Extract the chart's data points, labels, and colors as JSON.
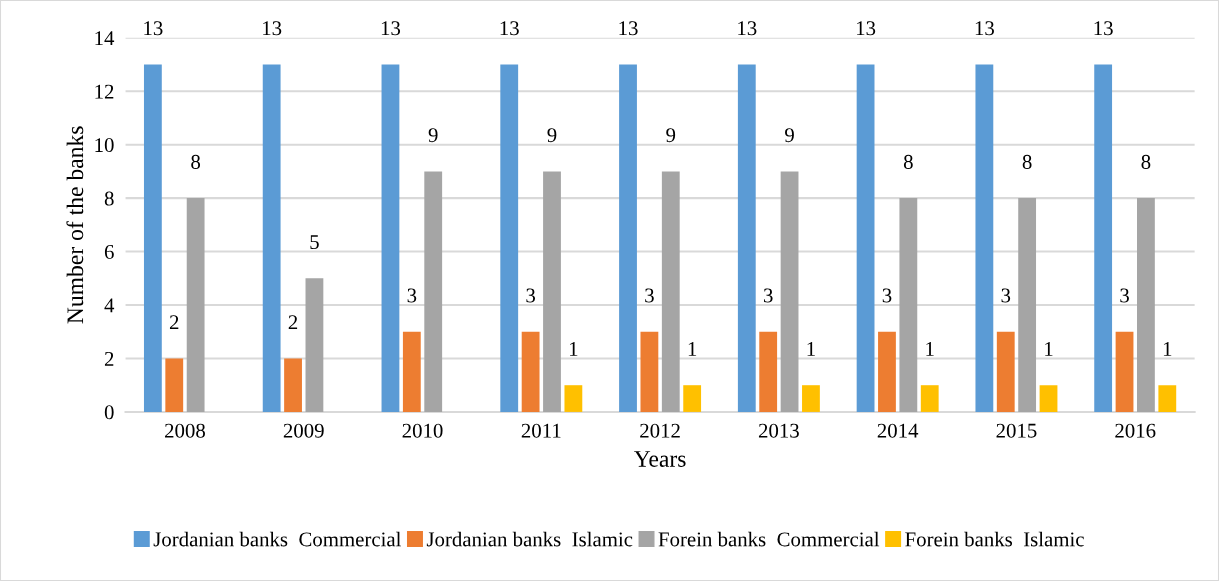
{
  "chart_data": {
    "type": "bar",
    "xlabel": "Years",
    "ylabel": "Number of the banks",
    "categories": [
      "2008",
      "2009",
      "2010",
      "2011",
      "2012",
      "2013",
      "2014",
      "2015",
      "2016"
    ],
    "series": [
      {
        "name": "Jordanian banks  Commercial",
        "color": "#5b9bd5",
        "values": [
          13,
          13,
          13,
          13,
          13,
          13,
          13,
          13,
          13
        ]
      },
      {
        "name": "Jordanian banks  Islamic",
        "color": "#ed7d31",
        "values": [
          2,
          2,
          3,
          3,
          3,
          3,
          3,
          3,
          3
        ]
      },
      {
        "name": "Forein banks  Commercial",
        "color": "#a5a5a5",
        "values": [
          8,
          5,
          9,
          9,
          9,
          9,
          8,
          8,
          8
        ]
      },
      {
        "name": "Forein banks  Islamic",
        "color": "#ffc000",
        "values": [
          null,
          null,
          null,
          1,
          1,
          1,
          1,
          1,
          1
        ]
      }
    ],
    "ylim": [
      0,
      14
    ],
    "yticks": [
      0,
      2,
      4,
      6,
      8,
      10,
      12,
      14
    ],
    "grid": "y",
    "legend": "bottom",
    "data_labels": true
  }
}
